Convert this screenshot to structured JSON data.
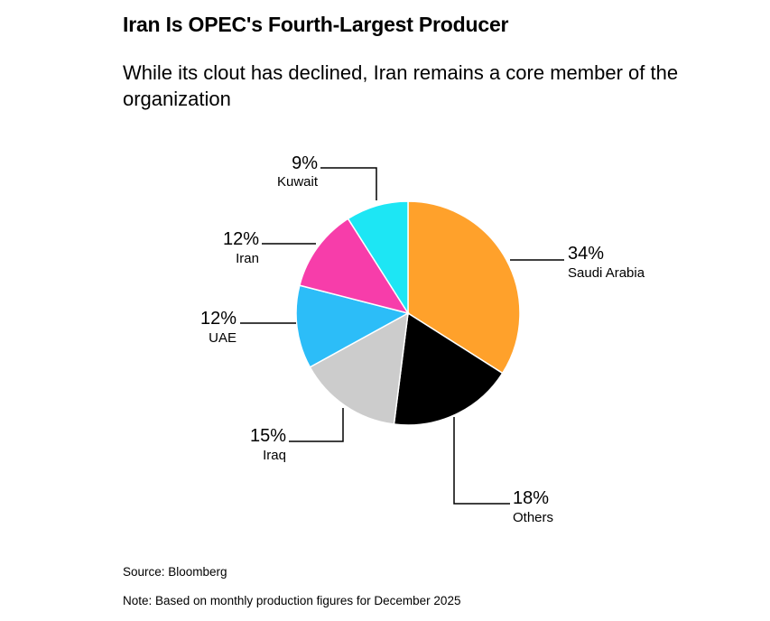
{
  "chart_data": {
    "type": "pie",
    "title": "Iran Is OPEC's Fourth-Largest Producer",
    "subtitle": "While its clout has declined, Iran remains a core member of the organization",
    "slices": [
      {
        "label": "Saudi Arabia",
        "value": 34,
        "pct_label": "34%",
        "color": "#FFA12B"
      },
      {
        "label": "Others",
        "value": 18,
        "pct_label": "18%",
        "color": "#000000"
      },
      {
        "label": "Iraq",
        "value": 15,
        "pct_label": "15%",
        "color": "#CCCCCC"
      },
      {
        "label": "UAE",
        "value": 12,
        "pct_label": "12%",
        "color": "#2CBDF8"
      },
      {
        "label": "Iran",
        "value": 12,
        "pct_label": "12%",
        "color": "#F73DAA"
      },
      {
        "label": "Kuwait",
        "value": 9,
        "pct_label": "9%",
        "color": "#1DE6F4"
      }
    ]
  },
  "footer": {
    "source": "Source: Bloomberg",
    "note": "Note: Based on monthly production figures for December 2025"
  }
}
